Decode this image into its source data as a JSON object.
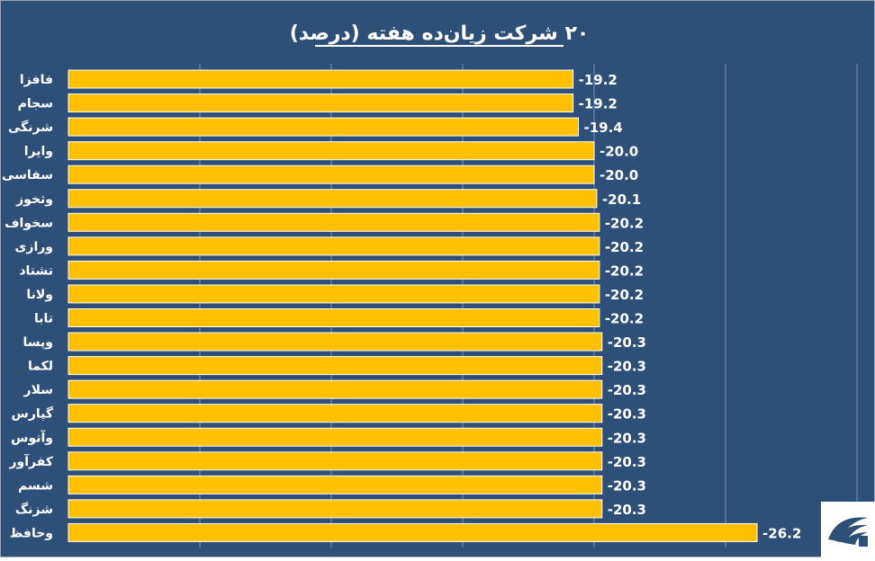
{
  "chart_data": {
    "type": "bar",
    "orientation": "horizontal",
    "title": "۲۰ شرکت زیان‌ده هفته (درصد)",
    "categories": [
      "فافزا",
      "سجام",
      "شرنگی",
      "وایرا",
      "سفاسی",
      "وثخوز",
      "سخواف",
      "ورازی",
      "تشتاد",
      "ولانا",
      "تابا",
      "وپسا",
      "لکما",
      "سلار",
      "گپارس",
      "وآتوس",
      "کفرآور",
      "شسم",
      "شزنگ",
      "وحافظ"
    ],
    "values": [
      -19.2,
      -19.2,
      -19.4,
      -20.0,
      -20.0,
      -20.1,
      -20.2,
      -20.2,
      -20.2,
      -20.2,
      -20.2,
      -20.3,
      -20.3,
      -20.3,
      -20.3,
      -20.3,
      -20.3,
      -20.3,
      -20.3,
      -26.2
    ],
    "value_labels": [
      "-19.2",
      "-19.2",
      "-19.4",
      "-20.0",
      "-20.0",
      "-20.1",
      "-20.2",
      "-20.2",
      "-20.2",
      "-20.2",
      "-20.2",
      "-20.3",
      "-20.3",
      "-20.3",
      "-20.3",
      "-20.3",
      "-20.3",
      "-20.3",
      "-20.3",
      "-26.2"
    ],
    "grid": true,
    "legend": "none"
  },
  "colors": {
    "background": "#2e5078",
    "bar": "#ffc000",
    "bar_border": "#ffffff",
    "grid": "#7a92b0",
    "text": "#ffffff"
  },
  "logo": {
    "icon": "news-agency-logo-icon"
  }
}
